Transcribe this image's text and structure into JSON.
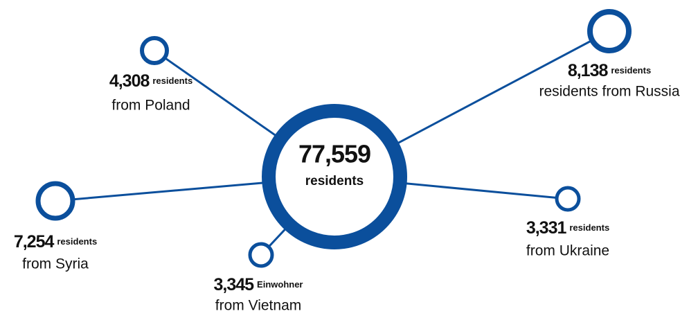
{
  "center": {
    "value": "77,559",
    "label": "residents"
  },
  "nodes": [
    {
      "value": "4,308",
      "unit": "residents",
      "label": "from Poland"
    },
    {
      "value": "8,138",
      "unit": "residents",
      "label": "residents from Russia"
    },
    {
      "value": "7,254",
      "unit": "residents",
      "label": "from Syria"
    },
    {
      "value": "3,345",
      "unit": "Einwohner",
      "label": "from Vietnam"
    },
    {
      "value": "3,331",
      "unit": "residents",
      "label": "from Ukraine"
    }
  ]
}
